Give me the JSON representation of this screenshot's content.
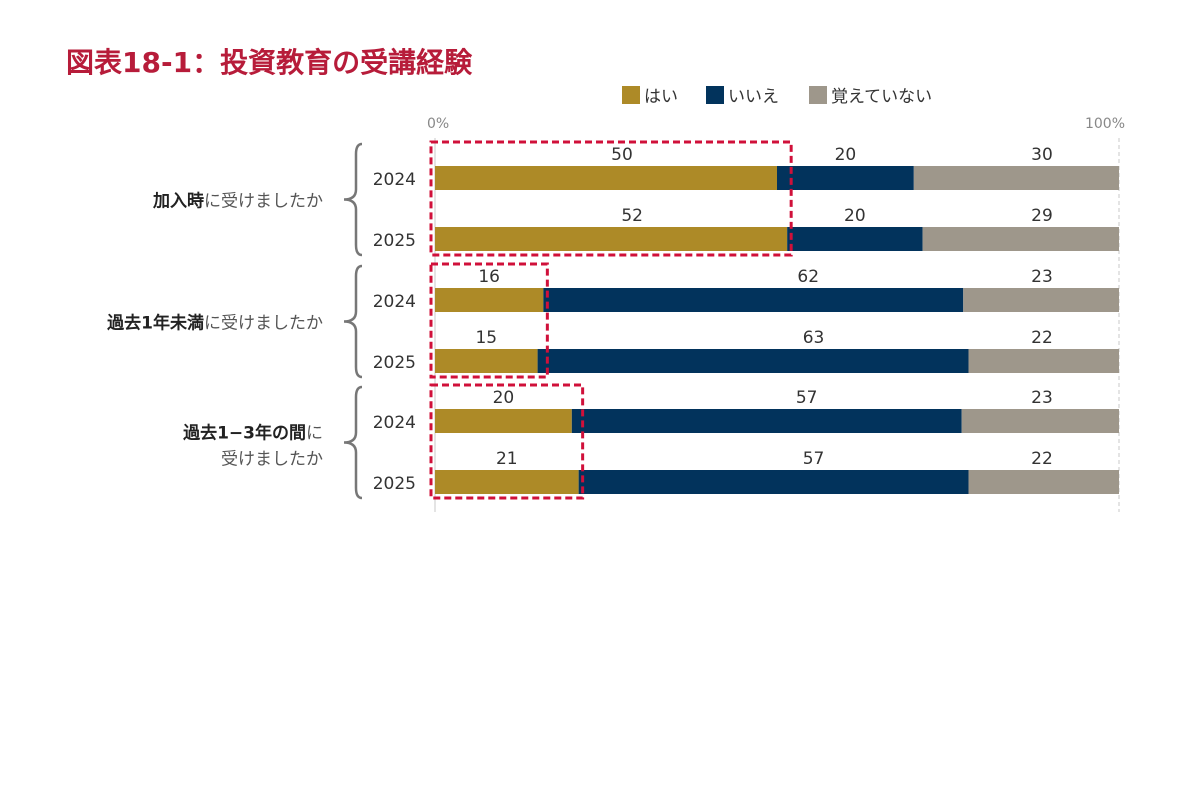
{
  "chart_data": {
    "type": "bar",
    "orientation": "horizontal",
    "stacked": true,
    "title": "図表18-1：投資教育の受講経験",
    "xlim": [
      0,
      100
    ],
    "axis_min_label": "0%",
    "axis_max_label": "100%",
    "legend_position": "top-right",
    "series": [
      {
        "name": "はい",
        "color": "#AD8A27"
      },
      {
        "name": "いいえ",
        "color": "#02335C"
      },
      {
        "name": "覚えていない",
        "color": "#9E978B"
      }
    ],
    "groups": [
      {
        "label_bold": "加入時",
        "label_rest": "に受けましたか",
        "label_line2": "",
        "rows": [
          {
            "year": "2024",
            "values": [
              50,
              20,
              30
            ]
          },
          {
            "year": "2025",
            "values": [
              52,
              20,
              29
            ]
          }
        ]
      },
      {
        "label_bold": "過去1年未満",
        "label_rest": "に受けましたか",
        "label_line2": "",
        "rows": [
          {
            "year": "2024",
            "values": [
              16,
              62,
              23
            ]
          },
          {
            "year": "2025",
            "values": [
              15,
              63,
              22
            ]
          }
        ]
      },
      {
        "label_bold": "過去1−3年の間",
        "label_rest": "に",
        "label_line2": "受けましたか",
        "rows": [
          {
            "year": "2024",
            "values": [
              20,
              57,
              23
            ]
          },
          {
            "year": "2025",
            "values": [
              21,
              57,
              22
            ]
          }
        ]
      }
    ],
    "title_color": "#B71C3A",
    "highlight_color": "#D0103A",
    "text_color": "#333333",
    "muted_color": "#888888"
  }
}
